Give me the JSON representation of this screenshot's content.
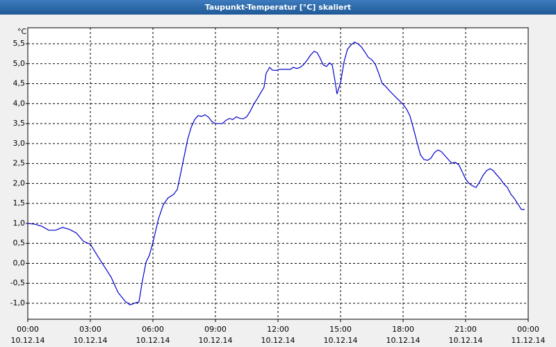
{
  "chart_data": {
    "type": "line",
    "title": "Taupunkt-Temperatur [°C] skaliert",
    "y_unit": "°C",
    "x": [
      0,
      0.33,
      0.67,
      1.0,
      1.33,
      1.67,
      2.0,
      2.33,
      2.67,
      3.0,
      3.33,
      3.67,
      4.0,
      4.33,
      4.67,
      4.9,
      5.17,
      5.33,
      5.5,
      5.67,
      5.83,
      6.0,
      6.27,
      6.5,
      6.73,
      7.0,
      7.17,
      7.33,
      7.5,
      7.67,
      7.83,
      8.0,
      8.17,
      8.33,
      8.5,
      8.67,
      8.83,
      9.0,
      9.33,
      9.5,
      9.67,
      9.83,
      10.0,
      10.17,
      10.33,
      10.5,
      10.67,
      10.83,
      11.0,
      11.17,
      11.33,
      11.43,
      11.6,
      11.73,
      11.9,
      12.07,
      12.33,
      12.6,
      12.73,
      12.9,
      13.07,
      13.23,
      13.4,
      13.57,
      13.73,
      13.87,
      14.0,
      14.17,
      14.33,
      14.47,
      14.6,
      14.73,
      14.83,
      15.0,
      15.17,
      15.33,
      15.5,
      15.67,
      15.83,
      16.0,
      16.17,
      16.33,
      16.5,
      16.67,
      16.83,
      17.0,
      17.17,
      17.33,
      17.5,
      17.67,
      17.83,
      18.0,
      18.17,
      18.33,
      18.5,
      18.67,
      18.83,
      19.0,
      19.17,
      19.33,
      19.5,
      19.67,
      19.83,
      20.0,
      20.17,
      20.33,
      20.5,
      20.67,
      20.83,
      21.0,
      21.17,
      21.33,
      21.5,
      21.67,
      21.83,
      22.0,
      22.17,
      22.33,
      22.5,
      22.67,
      22.83,
      23.0,
      23.17,
      23.33,
      23.5,
      23.67,
      23.83
    ],
    "series": [
      {
        "color": "#0000cc",
        "values": [
          1.0,
          0.98,
          0.93,
          0.83,
          0.83,
          0.9,
          0.85,
          0.76,
          0.55,
          0.48,
          0.2,
          -0.08,
          -0.35,
          -0.73,
          -0.95,
          -1.04,
          -0.99,
          -0.97,
          -0.43,
          0.03,
          0.2,
          0.52,
          1.12,
          1.47,
          1.64,
          1.73,
          1.85,
          2.25,
          2.68,
          3.11,
          3.4,
          3.6,
          3.7,
          3.68,
          3.72,
          3.66,
          3.55,
          3.5,
          3.5,
          3.58,
          3.63,
          3.6,
          3.67,
          3.63,
          3.62,
          3.67,
          3.81,
          3.98,
          4.12,
          4.27,
          4.41,
          4.76,
          4.91,
          4.84,
          4.83,
          4.86,
          4.86,
          4.86,
          4.91,
          4.88,
          4.91,
          4.98,
          5.09,
          5.22,
          5.31,
          5.28,
          5.16,
          4.97,
          4.93,
          5.02,
          4.97,
          4.58,
          4.24,
          4.53,
          5.05,
          5.36,
          5.47,
          5.54,
          5.5,
          5.42,
          5.29,
          5.16,
          5.1,
          4.98,
          4.76,
          4.5,
          4.43,
          4.33,
          4.24,
          4.15,
          4.07,
          3.98,
          3.86,
          3.69,
          3.37,
          3.03,
          2.72,
          2.6,
          2.58,
          2.63,
          2.77,
          2.84,
          2.8,
          2.7,
          2.6,
          2.51,
          2.53,
          2.47,
          2.3,
          2.11,
          2.0,
          1.94,
          1.9,
          2.04,
          2.2,
          2.32,
          2.37,
          2.32,
          2.21,
          2.11,
          1.99,
          1.9,
          1.73,
          1.63,
          1.49,
          1.35,
          1.35
        ]
      }
    ],
    "xlim": [
      0,
      24
    ],
    "xticks": [
      {
        "value": 0,
        "label": "00:00",
        "date": "10.12.14"
      },
      {
        "value": 3,
        "label": "03:00",
        "date": "10.12.14"
      },
      {
        "value": 6,
        "label": "06:00",
        "date": "10.12.14"
      },
      {
        "value": 9,
        "label": "09:00",
        "date": "10.12.14"
      },
      {
        "value": 12,
        "label": "12:00",
        "date": "10.12.14"
      },
      {
        "value": 15,
        "label": "15:00",
        "date": "10.12.14"
      },
      {
        "value": 18,
        "label": "18:00",
        "date": "10.12.14"
      },
      {
        "value": 21,
        "label": "21:00",
        "date": "10.12.14"
      },
      {
        "value": 24,
        "label": "00:00",
        "date": "11.12.14"
      }
    ],
    "ylim": [
      -1.4,
      5.9
    ],
    "yticks": [
      {
        "value": -1,
        "label": "-1,0"
      },
      {
        "value": -0.5,
        "label": "-0,5"
      },
      {
        "value": 0,
        "label": "0,0"
      },
      {
        "value": 0.5,
        "label": "0,5"
      },
      {
        "value": 1,
        "label": "1,0"
      },
      {
        "value": 1.5,
        "label": "1,5"
      },
      {
        "value": 2,
        "label": "2,0"
      },
      {
        "value": 2.5,
        "label": "2,5"
      },
      {
        "value": 3,
        "label": "3,0"
      },
      {
        "value": 3.5,
        "label": "3,5"
      },
      {
        "value": 4,
        "label": "4,0"
      },
      {
        "value": 4.5,
        "label": "4,5"
      },
      {
        "value": 5,
        "label": "5,0"
      },
      {
        "value": 5.5,
        "label": "5,5"
      }
    ],
    "grid": true
  }
}
